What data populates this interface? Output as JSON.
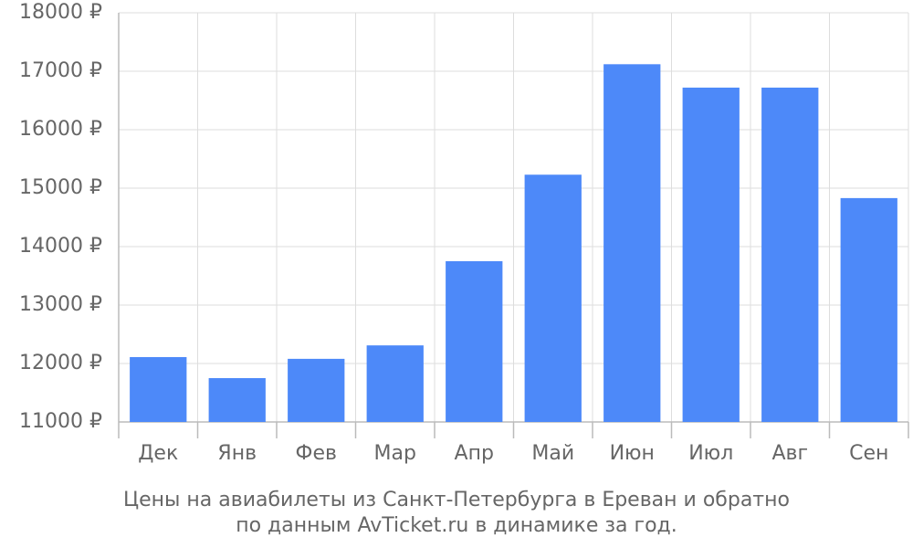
{
  "chart_data": {
    "type": "bar",
    "title": [
      "Цены на авиабилеты из Санкт-Петербурга в Ереван и обратно",
      "по данным AvTicket.ru в динамике за год."
    ],
    "categories": [
      "Дек",
      "Янв",
      "Фев",
      "Мар",
      "Апр",
      "Май",
      "Июн",
      "Июл",
      "Авг",
      "Сен"
    ],
    "values": [
      12110,
      11750,
      12080,
      12310,
      13750,
      15230,
      17120,
      16720,
      16720,
      14830
    ],
    "color": "#4d89f9",
    "ylim": [
      11000,
      18000
    ],
    "yticks": [
      {
        "value": 11000,
        "label": "11000 ₽"
      },
      {
        "value": 12000,
        "label": "12000 ₽"
      },
      {
        "value": 13000,
        "label": "13000 ₽"
      },
      {
        "value": 14000,
        "label": "14000 ₽"
      },
      {
        "value": 15000,
        "label": "15000 ₽"
      },
      {
        "value": 16000,
        "label": "16000 ₽"
      },
      {
        "value": 17000,
        "label": "17000 ₽"
      },
      {
        "value": 18000,
        "label": "18000 ₽"
      }
    ],
    "grid": true
  }
}
